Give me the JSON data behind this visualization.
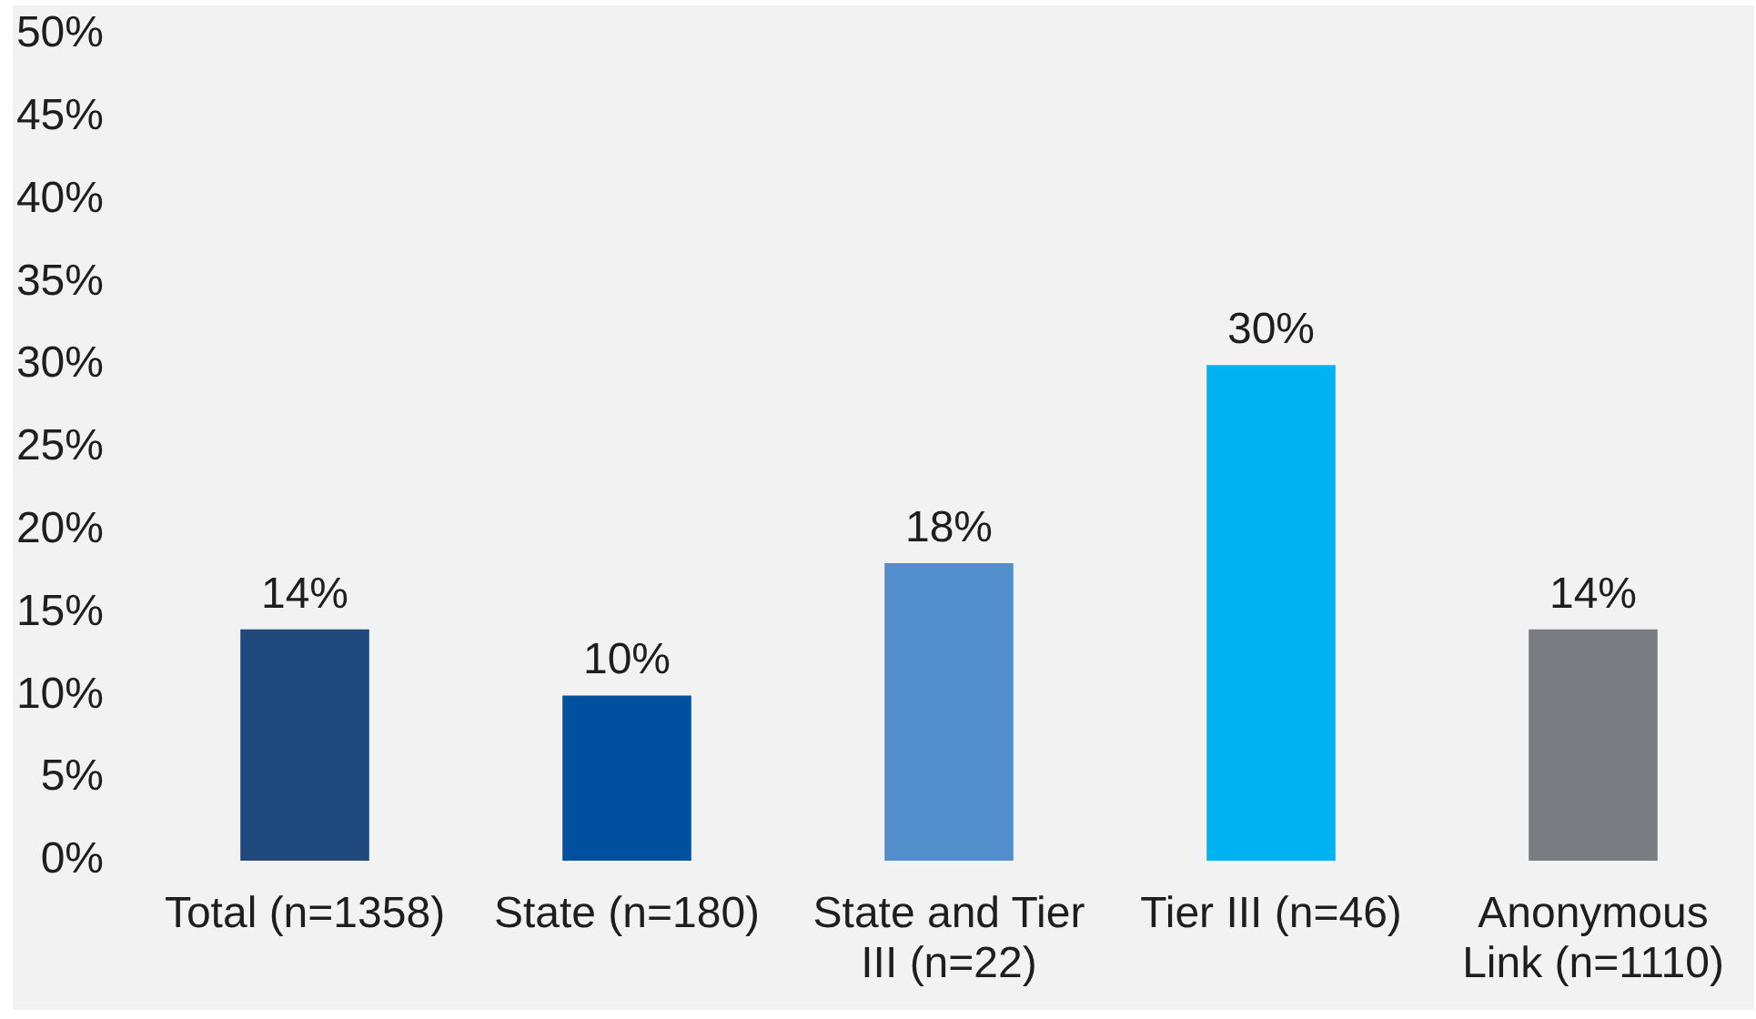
{
  "chart_data": {
    "type": "bar",
    "categories": [
      "Total (n=1358)",
      "State (n=180)",
      "State and Tier III (n=22)",
      "Tier III (n=46)",
      "Anonymous Link (n=1110)"
    ],
    "values": [
      14,
      10,
      18,
      30,
      14
    ],
    "colors": [
      "#1f487c",
      "#0050a0",
      "#538ecc",
      "#00b2ef",
      "#797d81"
    ],
    "value_labels": [
      "14%",
      "10%",
      "18%",
      "30%",
      "14%"
    ],
    "ylim": [
      0,
      50
    ],
    "yticks": [
      {
        "value": 0,
        "label": "0%"
      },
      {
        "value": 5,
        "label": "5%"
      },
      {
        "value": 10,
        "label": "10%"
      },
      {
        "value": 15,
        "label": "15%"
      },
      {
        "value": 20,
        "label": "20%"
      },
      {
        "value": 25,
        "label": "25%"
      },
      {
        "value": 30,
        "label": "30%"
      },
      {
        "value": 35,
        "label": "35%"
      },
      {
        "value": 40,
        "label": "40%"
      },
      {
        "value": 45,
        "label": "45%"
      },
      {
        "value": 50,
        "label": "50%"
      }
    ]
  }
}
